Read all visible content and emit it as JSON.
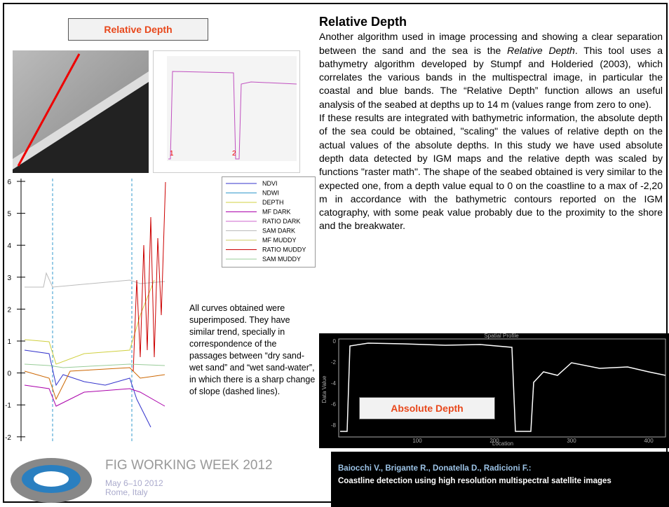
{
  "relative_label": "Relative Depth",
  "profile_chart": {
    "markers": [
      "1",
      "2"
    ]
  },
  "left_chart": {
    "yticks": [
      "6",
      "5",
      "4",
      "3",
      "2",
      "1",
      "0",
      "-1",
      "-2"
    ],
    "legend": [
      "NDVI",
      "NDWI",
      "DEPTH",
      "MF DARK",
      "RATIO DARK",
      "SAM DARK",
      "MF MUDDY",
      "RATIO MUDDY",
      "SAM MUDDY"
    ]
  },
  "caption": "All curves obtained were superimposed. They have similar trend, specially in correspondence of the passages between “dry sand-wet sand” and “wet sand-water”, in which there is a sharp change of slope (dashed lines).",
  "body": {
    "title": "Relative Depth",
    "p1_a": "Another algorithm used in image processing and showing a clear separation between the sand and the sea is the",
    "p1_em": "Relative Depth",
    "p1_b": ". This tool uses a bathymetry algorithm developed by Stumpf and Holderied (2003), which correlates the various bands in the multispectral image, in particular the coastal and blue bands. The “Relative Depth” function allows an useful analysis of the seabed at depths up to 14 m (values range from zero to one).",
    "p2": "If these results are integrated with bathymetric information, the absolute depth of the sea could be obtained, \"scaling\" the values of relative depth on the actual values of the absolute depths. In this study we have used absolute depth data detected by IGM maps and the relative depth was scaled by functions \"raster math\". The shape of the seabed obtained is very similar to the expected one, from a depth value equal to 0 on the coastline to a max of -2,20 m in accordance with the bathymetric contours reported on the IGM catography, with some peak value probably due to the proximity to the shore and the breakwater."
  },
  "absolute_chart": {
    "title": "Spatial Profile",
    "xlabel": "Location",
    "ylabel": "Data Value",
    "yticks": [
      "0",
      "-2",
      "-4",
      "-6",
      "-8"
    ],
    "xticks": [
      "100",
      "200",
      "300",
      "400"
    ],
    "label": "Absolute Depth"
  },
  "footer": {
    "event": "FIG WORKING WEEK 2012",
    "dates": "May 6–10 2012",
    "place": "Rome, Italy",
    "authors": "Baiocchi V., Brigante R., Donatella D., Radicioni F.:",
    "paper": "Coastline detection using high resolution multispectral satellite images"
  }
}
